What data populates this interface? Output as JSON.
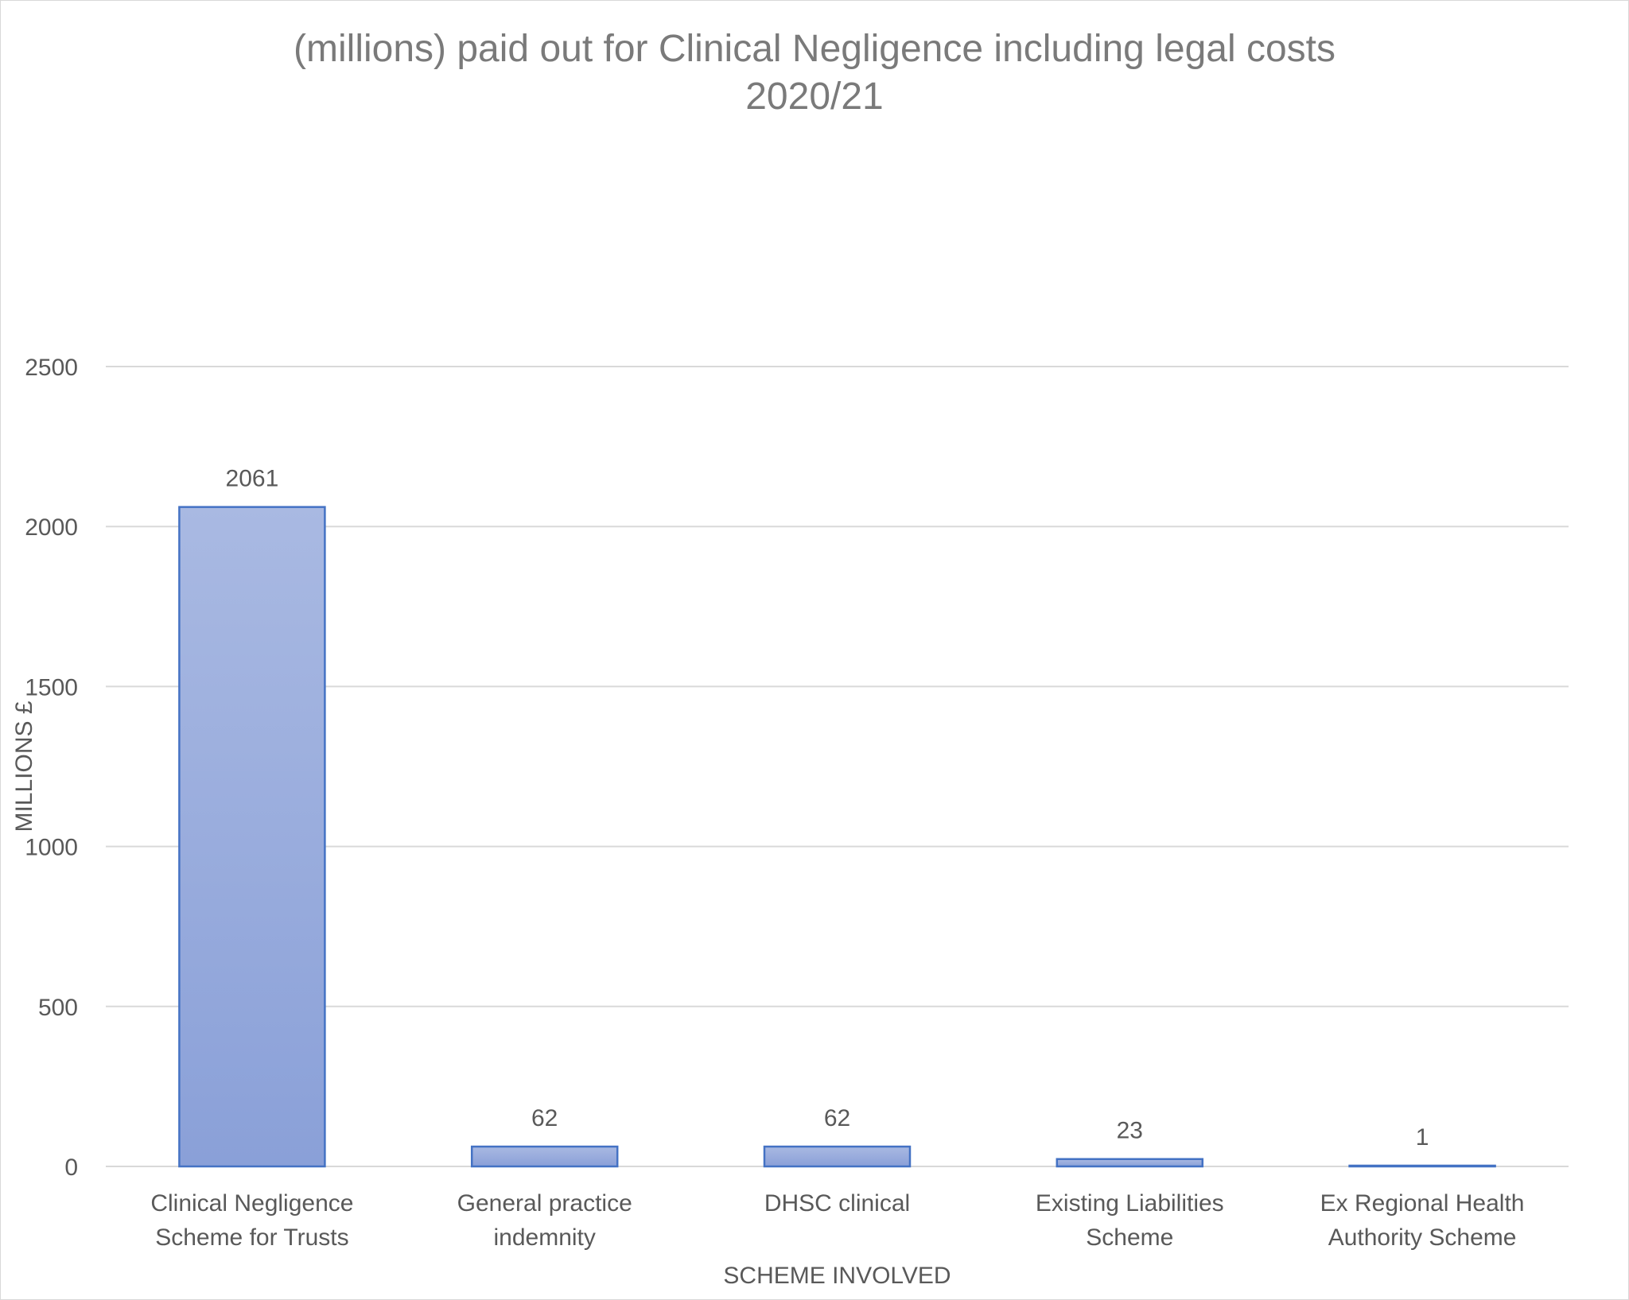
{
  "chart_data": {
    "type": "bar",
    "title_lines": [
      "(millions) paid out for Clinical Negligence including legal costs",
      "2020/21"
    ],
    "xlabel": "SCHEME INVOLVED",
    "ylabel": "MILLIONS £",
    "categories": [
      [
        "Clinical Negligence",
        "Scheme for Trusts"
      ],
      [
        "General practice",
        "indemnity"
      ],
      [
        "DHSC clinical"
      ],
      [
        "Existing Liabilities",
        "Scheme"
      ],
      [
        "Ex Regional Health",
        "Authority Scheme"
      ]
    ],
    "values": [
      2061,
      62,
      62,
      23,
      1
    ],
    "data_labels": [
      "2061",
      "62",
      "62",
      "23",
      "1"
    ],
    "ylim": [
      0,
      2500
    ],
    "yticks": [
      0,
      500,
      1000,
      1500,
      2000,
      2500
    ],
    "grid": true,
    "legend": "none",
    "colors": {
      "bar_top": "#a9b9e2",
      "bar_bottom": "#8aa0d8",
      "bar_border": "#4472c4",
      "grid": "#d9d9d9",
      "text": "#595959",
      "title": "#7a7a7a"
    }
  }
}
